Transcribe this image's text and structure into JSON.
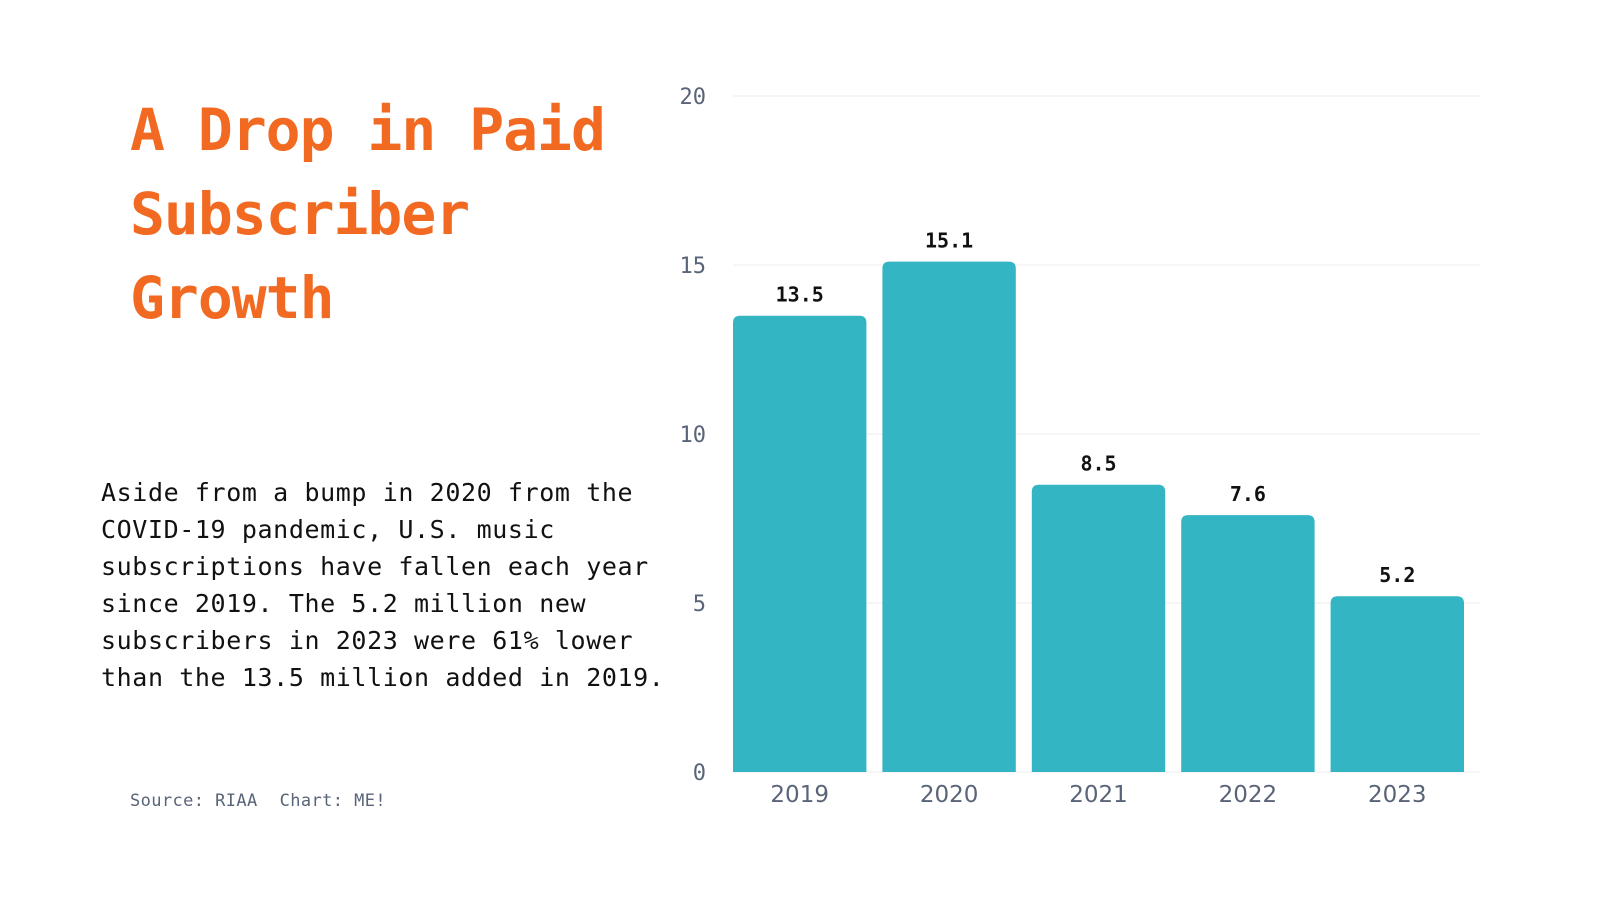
{
  "title_lines": [
    "A Drop in Paid",
    "Subscriber",
    "Growth"
  ],
  "description": "Aside from a bump in 2020 from the COVID-19 pandemic, U.S. music subscriptions have fallen each year since 2019. The 5.2 million new subscribers in 2023 were 61% lower than the 13.5 million added in 2019.",
  "source": "Source: RIAA",
  "credit": "Chart: ME!",
  "colors": {
    "title": "#f26a21",
    "bar": "#33b5c4",
    "grid": "#eceef2",
    "axis_text": "#5a6478"
  },
  "chart_data": {
    "type": "bar",
    "categories": [
      "2019",
      "2020",
      "2021",
      "2022",
      "2023"
    ],
    "values": [
      13.5,
      15.1,
      8.5,
      7.6,
      5.2
    ],
    "data_labels": [
      "13.5",
      "15.1",
      "8.5",
      "7.6",
      "5.2"
    ],
    "y_ticks": [
      0,
      5,
      10,
      15,
      20
    ],
    "ylim": [
      0,
      20
    ],
    "xlabel": "",
    "ylabel": "",
    "grid": true,
    "legend": "none"
  }
}
